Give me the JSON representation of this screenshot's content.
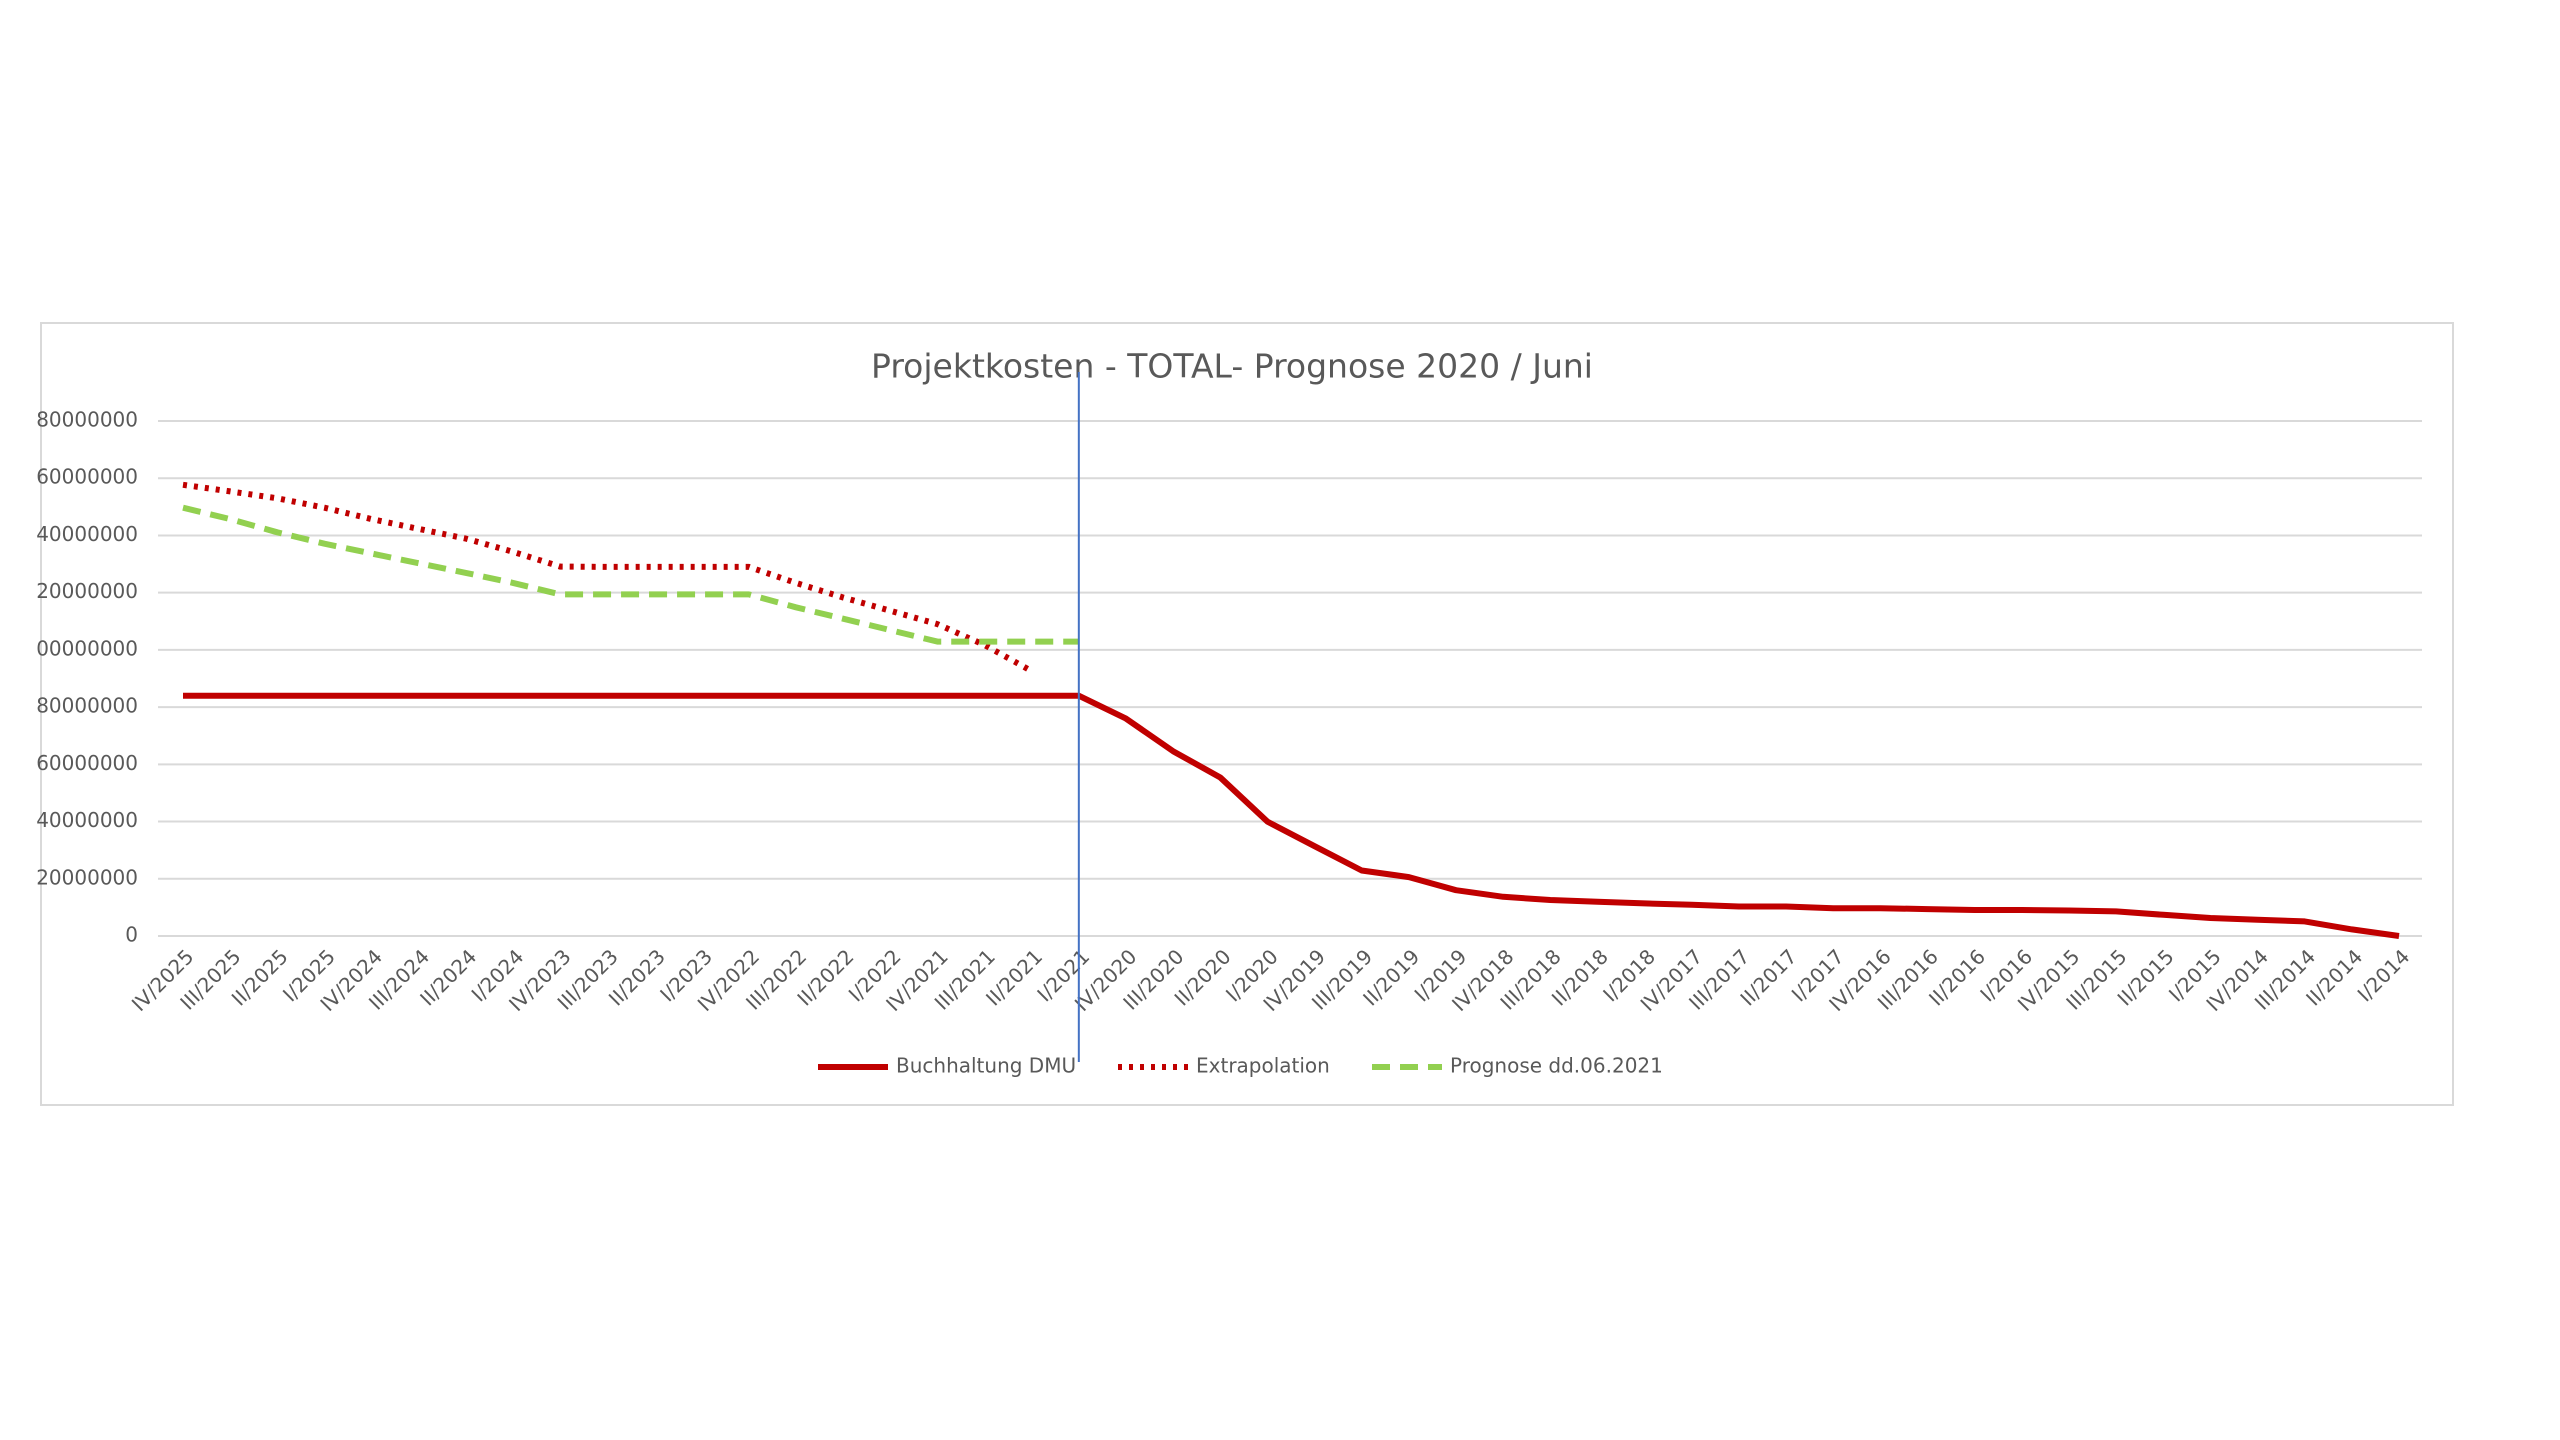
{
  "chart_data": {
    "type": "line",
    "title": "Projektkosten - TOTAL- Prognose 2020 / Juni",
    "categories": [
      "IV/2025",
      "III/2025",
      "II/2025",
      "I/2025",
      "IV/2024",
      "III/2024",
      "II/2024",
      "I/2024",
      "IV/2023",
      "III/2023",
      "II/2023",
      "I/2023",
      "IV/2022",
      "III/2022",
      "II/2022",
      "I/2022",
      "IV/2021",
      "III/2021",
      "II/2021",
      "I/2021",
      "IV/2020",
      "III/2020",
      "II/2020",
      "I/2020",
      "IV/2019",
      "III/2019",
      "II/2019",
      "I/2019",
      "IV/2018",
      "III/2018",
      "II/2018",
      "I/2018",
      "IV/2017",
      "III/2017",
      "II/2017",
      "I/2017",
      "IV/2016",
      "III/2016",
      "II/2016",
      "I/2016",
      "IV/2015",
      "III/2015",
      "II/2015",
      "I/2015",
      "IV/2014",
      "III/2014",
      "II/2014",
      "I/2014"
    ],
    "series": [
      {
        "name": "Buchhaltung DMU",
        "color": "#c00000",
        "style": "solid",
        "values": [
          84000000,
          84000000,
          84000000,
          84000000,
          84000000,
          84000000,
          84000000,
          84000000,
          84000000,
          84000000,
          84000000,
          84000000,
          84000000,
          84000000,
          84000000,
          84000000,
          84000000,
          84000000,
          84000000,
          84000000,
          76000000,
          64600000,
          55400000,
          40000000,
          31400000,
          22900000,
          20600000,
          16000000,
          13700000,
          12600000,
          12000000,
          11400000,
          10900000,
          10300000,
          10300000,
          9700000,
          9700000,
          9400000,
          9100000,
          9100000,
          8900000,
          8600000,
          7400000,
          6300000,
          5700000,
          5100000,
          2300000,
          0
        ]
      },
      {
        "name": "Extrapolation",
        "color": "#c00000",
        "style": "dotted",
        "values": [
          157700000,
          155400000,
          153000000,
          149700000,
          145700000,
          142300000,
          138900000,
          134300000,
          129100000,
          129000000,
          129000000,
          129000000,
          129000000,
          123400000,
          118300000,
          113700000,
          109000000,
          101700000,
          92600000,
          null,
          null,
          null,
          null,
          null,
          null,
          null,
          null,
          null,
          null,
          null,
          null,
          null,
          null,
          null,
          null,
          null,
          null,
          null,
          null,
          null,
          null,
          null,
          null,
          null,
          null,
          null,
          null,
          null
        ]
      },
      {
        "name": "Prognose dd.06.2021",
        "color": "#92d050",
        "style": "dashed",
        "values": [
          149700000,
          145700000,
          141100000,
          137100000,
          133700000,
          130300000,
          126900000,
          123400000,
          119400000,
          119400000,
          119400000,
          119400000,
          119400000,
          114900000,
          110900000,
          106900000,
          102900000,
          102900000,
          102900000,
          102900000,
          null,
          null,
          null,
          null,
          null,
          null,
          null,
          null,
          null,
          null,
          null,
          null,
          null,
          null,
          null,
          null,
          null,
          null,
          null,
          null,
          null,
          null,
          null,
          null,
          null,
          null,
          null,
          null
        ]
      }
    ],
    "ylim": [
      0,
      180000000
    ],
    "yticks": [
      0,
      20000000,
      40000000,
      60000000,
      80000000,
      {
        "value": 100000000,
        "label": "00000000"
      },
      {
        "value": 120000000,
        "label": "20000000"
      },
      {
        "value": 140000000,
        "label": "40000000"
      },
      {
        "value": 160000000,
        "label": "60000000"
      },
      {
        "value": 180000000,
        "label": "80000000"
      }
    ],
    "grid": true,
    "legend": "bottom"
  }
}
